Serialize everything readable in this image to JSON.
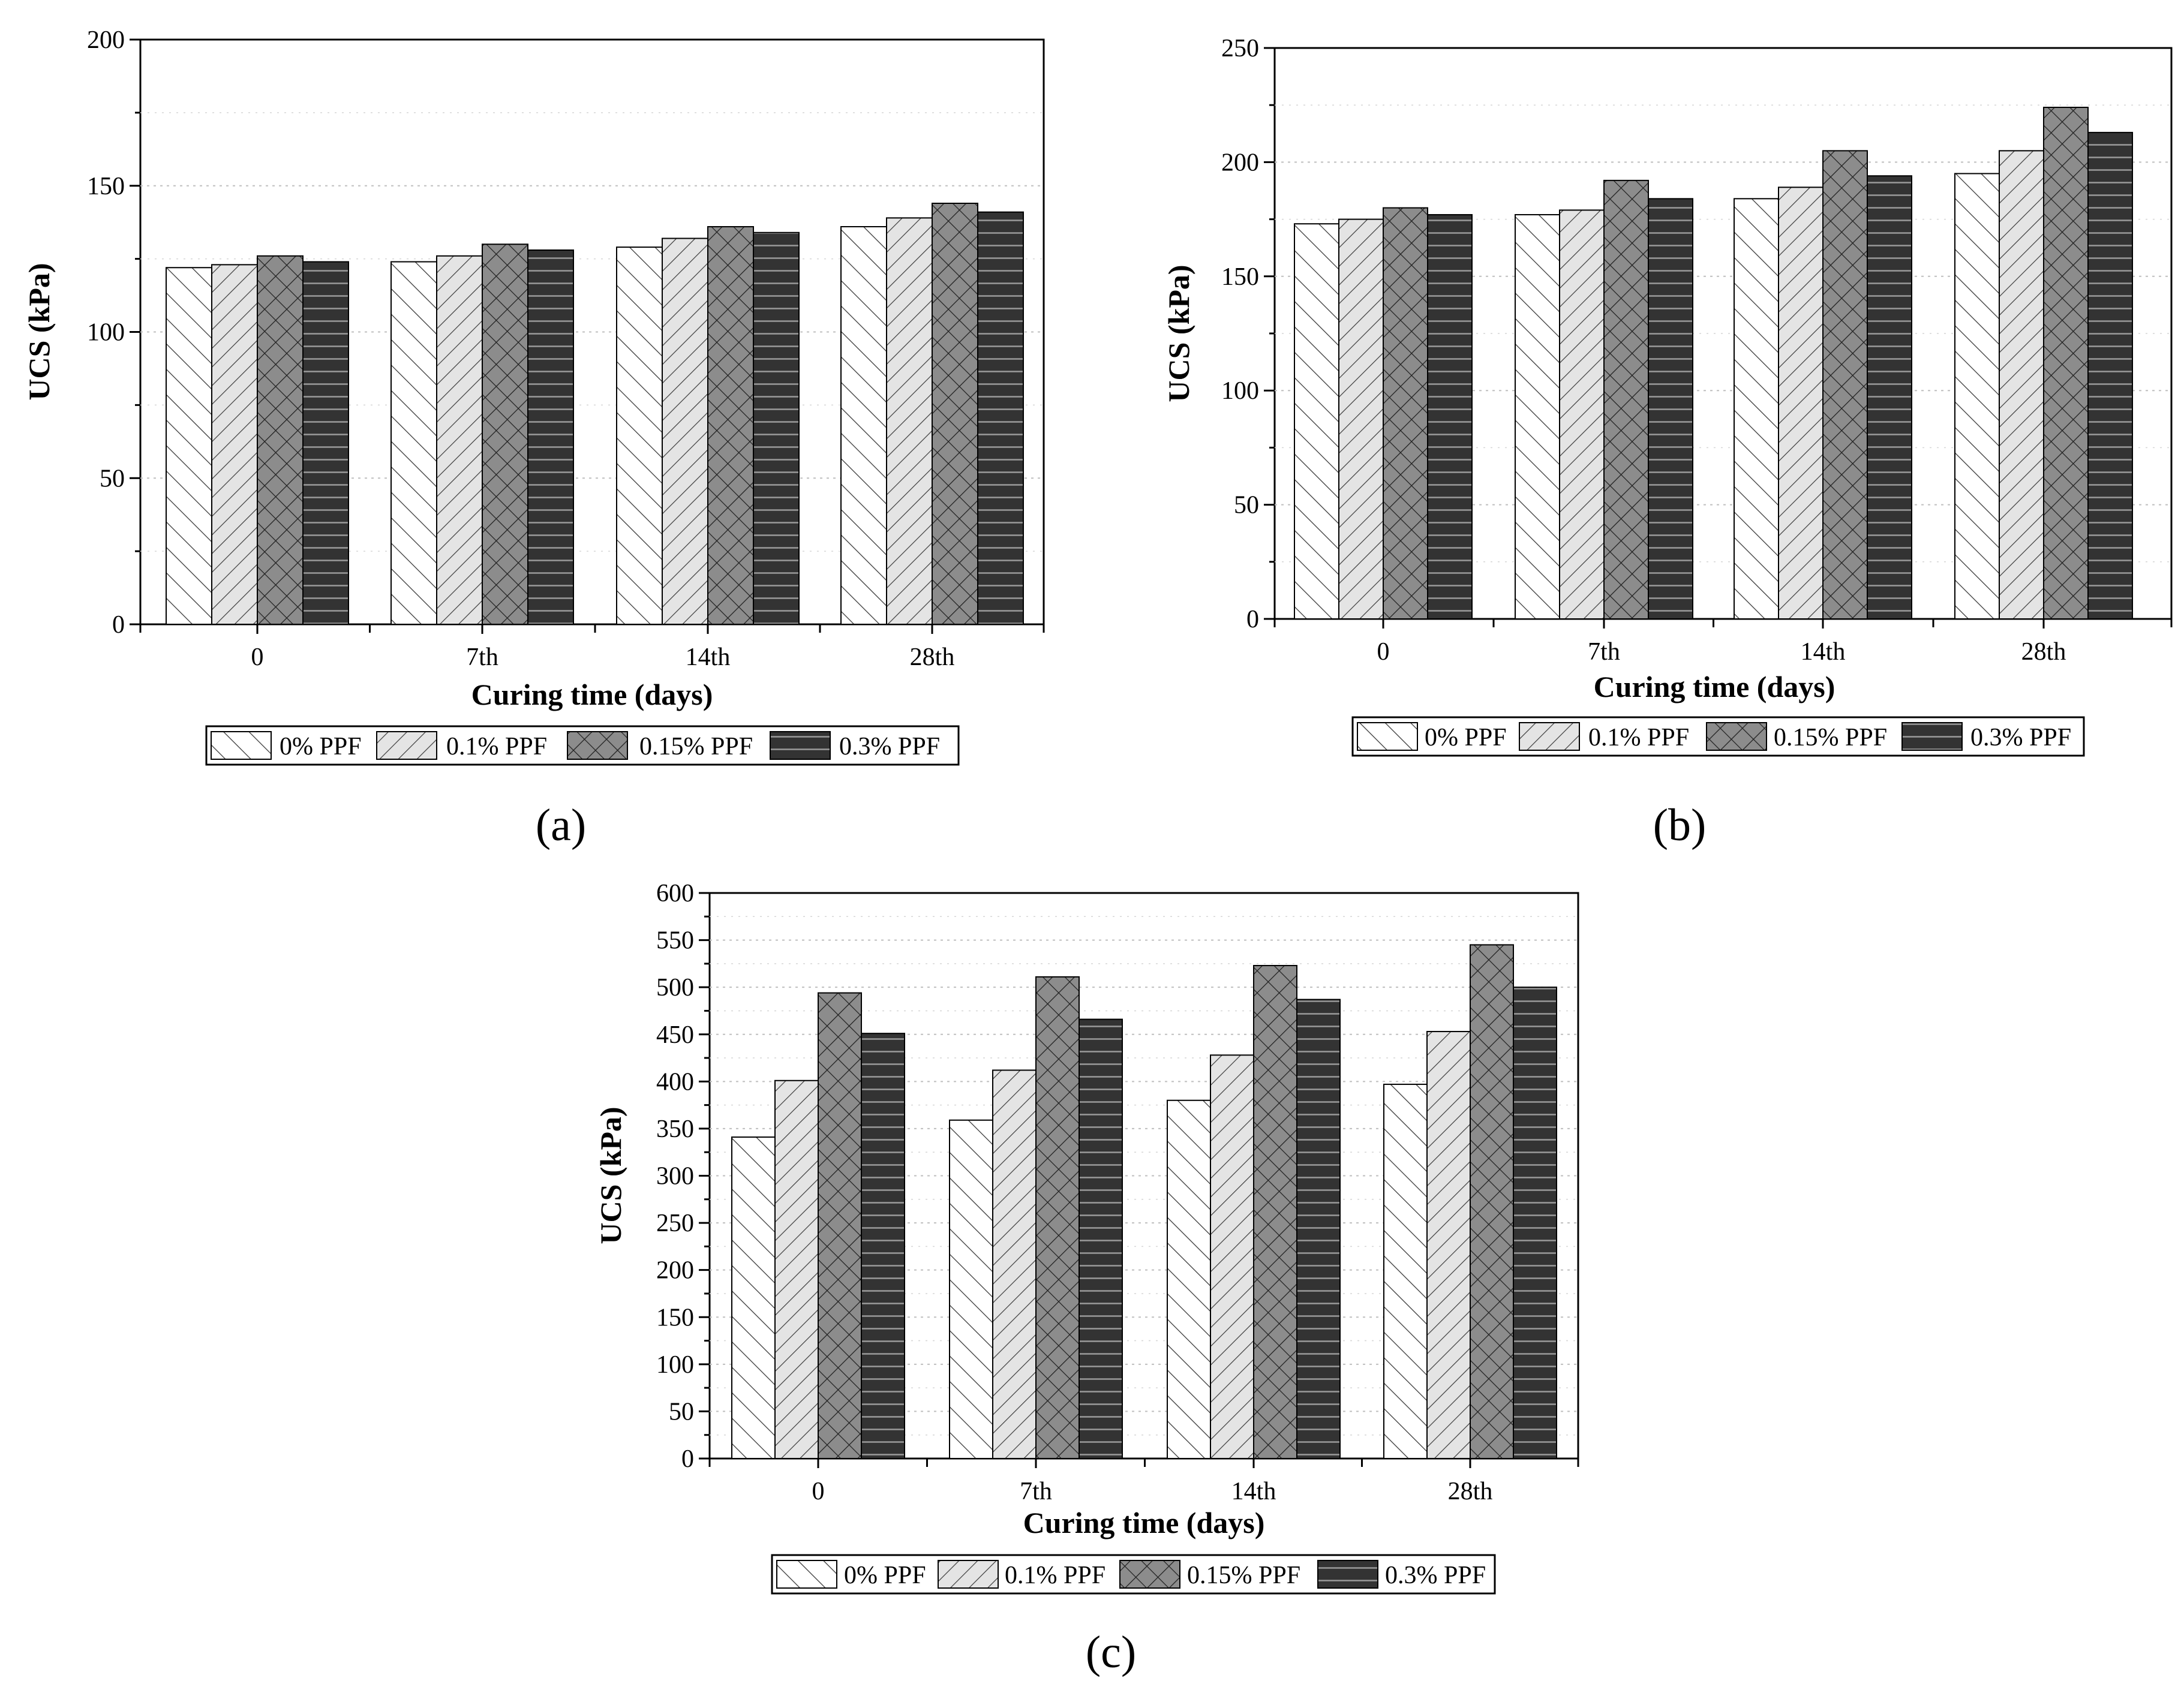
{
  "figure": {
    "palette": {
      "axis": "#000000",
      "grid": "#bfbfbf",
      "dark_fill": "#333333",
      "mid_fill": "#8c8c8c",
      "light_fill": "#e4e4e4",
      "white_fill": "#ffffff"
    }
  },
  "chart_data": [
    {
      "panel_label": "(a)",
      "type": "bar",
      "title": "",
      "xlabel": "Curing time (days)",
      "ylabel": "UCS (kPa)",
      "ylim": [
        0,
        200
      ],
      "yticks": [
        "0",
        "50",
        "100",
        "150",
        "200"
      ],
      "grid": "horizontal dotted",
      "legend_position": "bottom",
      "categories": [
        "0",
        "7th",
        "14th",
        "28th"
      ],
      "series": [
        {
          "name": "0% PPF",
          "pattern": "forward-diagonal",
          "values": [
            122,
            124,
            129,
            136
          ]
        },
        {
          "name": "0.1% PPF",
          "pattern": "back-diagonal",
          "values": [
            123,
            126,
            132,
            139
          ]
        },
        {
          "name": "0.15% PPF",
          "pattern": "crosshatch",
          "values": [
            126,
            130,
            136,
            144
          ]
        },
        {
          "name": "0.3% PPF",
          "pattern": "horizontal",
          "values": [
            124,
            128,
            134,
            141
          ]
        }
      ]
    },
    {
      "panel_label": "(b)",
      "type": "bar",
      "title": "",
      "xlabel": "Curing time (days)",
      "ylabel": "UCS (kPa)",
      "ylim": [
        0,
        250
      ],
      "yticks": [
        "0",
        "50",
        "100",
        "150",
        "200",
        "250"
      ],
      "grid": "horizontal dotted",
      "legend_position": "bottom",
      "categories": [
        "0",
        "7th",
        "14th",
        "28th"
      ],
      "series": [
        {
          "name": "0% PPF",
          "pattern": "forward-diagonal",
          "values": [
            173,
            177,
            184,
            195
          ]
        },
        {
          "name": "0.1% PPF",
          "pattern": "back-diagonal",
          "values": [
            175,
            179,
            189,
            205
          ]
        },
        {
          "name": "0.15% PPF",
          "pattern": "crosshatch",
          "values": [
            180,
            192,
            205,
            224
          ]
        },
        {
          "name": "0.3% PPF",
          "pattern": "horizontal",
          "values": [
            177,
            184,
            194,
            213
          ]
        }
      ]
    },
    {
      "panel_label": "(c)",
      "type": "bar",
      "title": "",
      "xlabel": "Curing time (days)",
      "ylabel": "UCS (kPa)",
      "ylim": [
        0,
        600
      ],
      "yticks": [
        "0",
        "50",
        "100",
        "150",
        "200",
        "250",
        "300",
        "350",
        "400",
        "450",
        "500",
        "550",
        "600"
      ],
      "grid": "horizontal dotted",
      "legend_position": "bottom",
      "categories": [
        "0",
        "7th",
        "14th",
        "28th"
      ],
      "series": [
        {
          "name": "0% PPF",
          "pattern": "forward-diagonal",
          "values": [
            341,
            359,
            380,
            397
          ]
        },
        {
          "name": "0.1% PPF",
          "pattern": "back-diagonal",
          "values": [
            401,
            412,
            428,
            453
          ]
        },
        {
          "name": "0.15% PPF",
          "pattern": "crosshatch",
          "values": [
            494,
            511,
            523,
            545
          ]
        },
        {
          "name": "0.3% PPF",
          "pattern": "horizontal",
          "values": [
            451,
            466,
            487,
            500
          ]
        }
      ]
    }
  ]
}
